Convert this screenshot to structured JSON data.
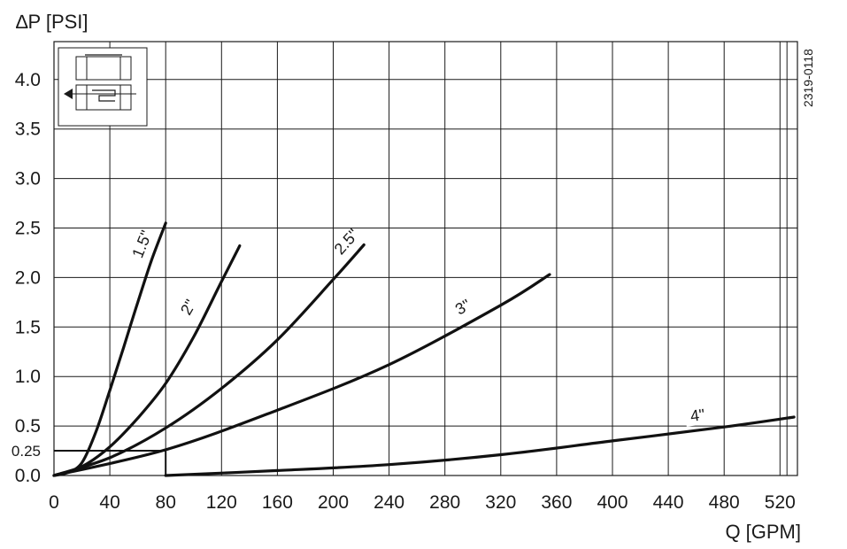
{
  "chart_data": {
    "type": "line",
    "xlabel": "Q [GPM]",
    "ylabel": "∆P [PSI]",
    "xlim": [
      0,
      530
    ],
    "ylim": [
      0,
      4.4
    ],
    "x_ticks": [
      "0",
      "40",
      "80",
      "120",
      "160",
      "200",
      "240",
      "280",
      "320",
      "360",
      "400",
      "440",
      "480",
      "520"
    ],
    "y_ticks": [
      "0.0",
      "0.25",
      "0.5",
      "1.0",
      "1.5",
      "2.0",
      "2.5",
      "3.0",
      "3.5",
      "4.0"
    ],
    "figure_code": "2319-0118",
    "grid": true,
    "series": [
      {
        "name": "1.5\"",
        "x": [
          0,
          10,
          20,
          30,
          40,
          50,
          60,
          70,
          80
        ],
        "y": [
          0,
          0.03,
          0.13,
          0.44,
          0.86,
          1.3,
          1.75,
          2.18,
          2.55
        ]
      },
      {
        "name": "2\"",
        "x": [
          0,
          20,
          40,
          60,
          80,
          100,
          120,
          133
        ],
        "y": [
          0,
          0.09,
          0.29,
          0.58,
          0.93,
          1.4,
          1.96,
          2.32
        ]
      },
      {
        "name": "2.5\"",
        "x": [
          0,
          40,
          80,
          120,
          160,
          200,
          222
        ],
        "y": [
          0,
          0.18,
          0.48,
          0.88,
          1.37,
          1.98,
          2.33
        ]
      },
      {
        "name": "3\"",
        "x": [
          0,
          80,
          160,
          240,
          320,
          355
        ],
        "y": [
          0,
          0.26,
          0.66,
          1.12,
          1.72,
          2.03
        ]
      },
      {
        "name": "4\"",
        "x": [
          80,
          160,
          240,
          320,
          400,
          480,
          530
        ],
        "y": [
          0.0,
          0.05,
          0.11,
          0.21,
          0.35,
          0.49,
          0.59
        ]
      }
    ],
    "reference_line": {
      "x": 80,
      "y": 0.25
    }
  }
}
